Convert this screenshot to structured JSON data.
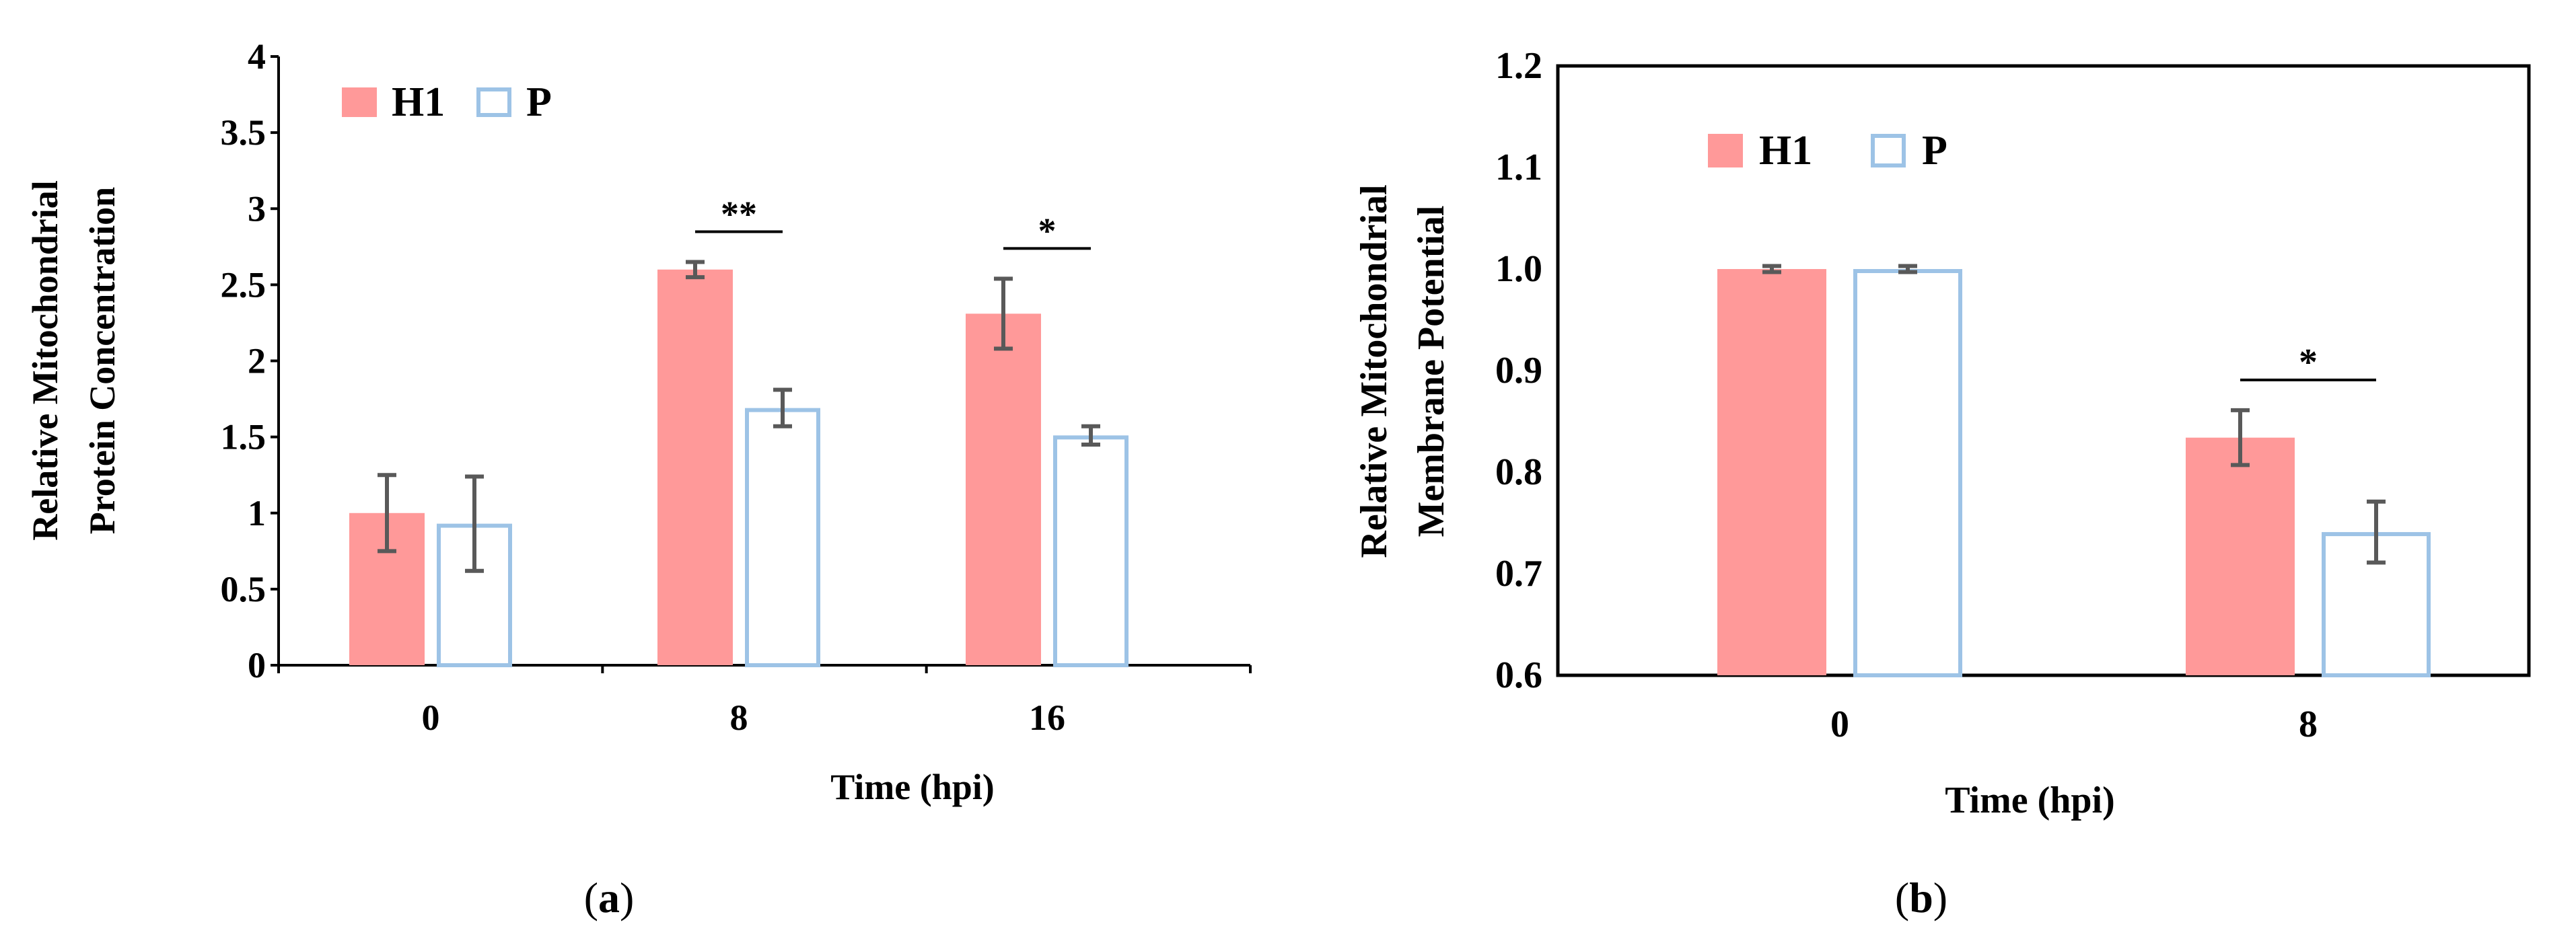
{
  "colors": {
    "h1": "#FF9999",
    "p_stroke": "#9DC3E6",
    "axis": "#000000",
    "error": "#595959"
  },
  "legend": {
    "h1": "H1",
    "p": "P"
  },
  "chart_data": [
    {
      "type": "bar",
      "panel_label": "a",
      "ylabel_lines": [
        "Relative Mitochondrial",
        "Protein Concentration"
      ],
      "xlabel": "Time (hpi)",
      "categories": [
        "0",
        "8",
        "16"
      ],
      "ylim": [
        0,
        4
      ],
      "yticks": [
        "0",
        "0.5",
        "1",
        "1.5",
        "2",
        "2.5",
        "3",
        "3.5",
        "4"
      ],
      "series": [
        {
          "name": "H1",
          "values": [
            1.0,
            2.6,
            2.31
          ],
          "errors": [
            0.25,
            0.05,
            0.23
          ]
        },
        {
          "name": "P",
          "values": [
            0.93,
            1.69,
            1.51
          ],
          "errors": [
            0.31,
            0.12,
            0.06
          ]
        }
      ],
      "annotations": [
        {
          "category": "8",
          "text": "**"
        },
        {
          "category": "16",
          "text": "*"
        }
      ],
      "legend_position": "top-left",
      "frame": "left-bottom"
    },
    {
      "type": "bar",
      "panel_label": "b",
      "ylabel_lines": [
        "Relative Mitochondrial",
        "Membrane Potential"
      ],
      "xlabel": "Time (hpi)",
      "categories": [
        "0",
        "8"
      ],
      "ylim": [
        0.6,
        1.2
      ],
      "yticks": [
        "0.6",
        "0.7",
        "0.8",
        "0.9",
        "1.0",
        "1.1",
        "1.2"
      ],
      "series": [
        {
          "name": "H1",
          "values": [
            1.0,
            0.834
          ],
          "errors": [
            0.003,
            0.027
          ]
        },
        {
          "name": "P",
          "values": [
            1.0,
            0.741
          ],
          "errors": [
            0.003,
            0.03
          ]
        }
      ],
      "annotations": [
        {
          "category": "8",
          "text": "*"
        }
      ],
      "legend_position": "top-left",
      "frame": "box"
    }
  ]
}
